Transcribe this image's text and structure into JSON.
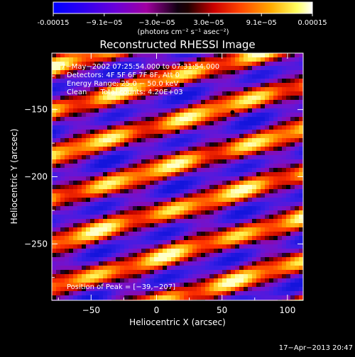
{
  "colorbar": {
    "tick_labels": [
      "-0.00015",
      "−9.1e−05",
      "−3.0e−05",
      "3.0e−05",
      "9.1e−05",
      "0.00015"
    ],
    "tick_values": [
      -0.00015,
      -9.1e-05,
      -3e-05,
      3e-05,
      9.1e-05,
      0.00015
    ],
    "range": [
      -0.00015,
      0.00015
    ],
    "units_label": "(photons cm⁻² s⁻¹ asec⁻²)",
    "colors": [
      "#0000ff",
      "#6a00d8",
      "#a000a0",
      "#000000",
      "#cc0000",
      "#ff4400",
      "#ffaa00",
      "#ffff60",
      "#ffffff"
    ]
  },
  "chart_data": {
    "type": "heatmap",
    "title": "Reconstructed RHESSI Image",
    "xlabel": "Heliocentric X (arcsec)",
    "ylabel": "Heliocentric Y (arcsec)",
    "xlim": [
      -80,
      112
    ],
    "ylim": [
      -292,
      -108
    ],
    "xticks": [
      -50,
      0,
      50,
      100
    ],
    "xtick_labels": [
      "−50",
      "0",
      "50",
      "100"
    ],
    "yticks": [
      -150,
      -200,
      -250
    ],
    "ytick_labels": [
      "−150",
      "−200",
      "−250"
    ],
    "annotations": [
      "7−May−2002 07:25:54.000 to 07:31:54.000",
      "Detectors: 4F 5F 6F 7F 8F, Att 0",
      "Energy Range: 25.0 − 50.0 keV",
      "Clean      Total counts: 4.20E+03",
      "Position of Peak = [−39,−207]"
    ],
    "peak_marker": {
      "x": 58,
      "y": -152
    },
    "peak_position": {
      "x": -39,
      "y": -207
    }
  },
  "footer": {
    "timestamp": "17−Apr−2013 20:47"
  }
}
